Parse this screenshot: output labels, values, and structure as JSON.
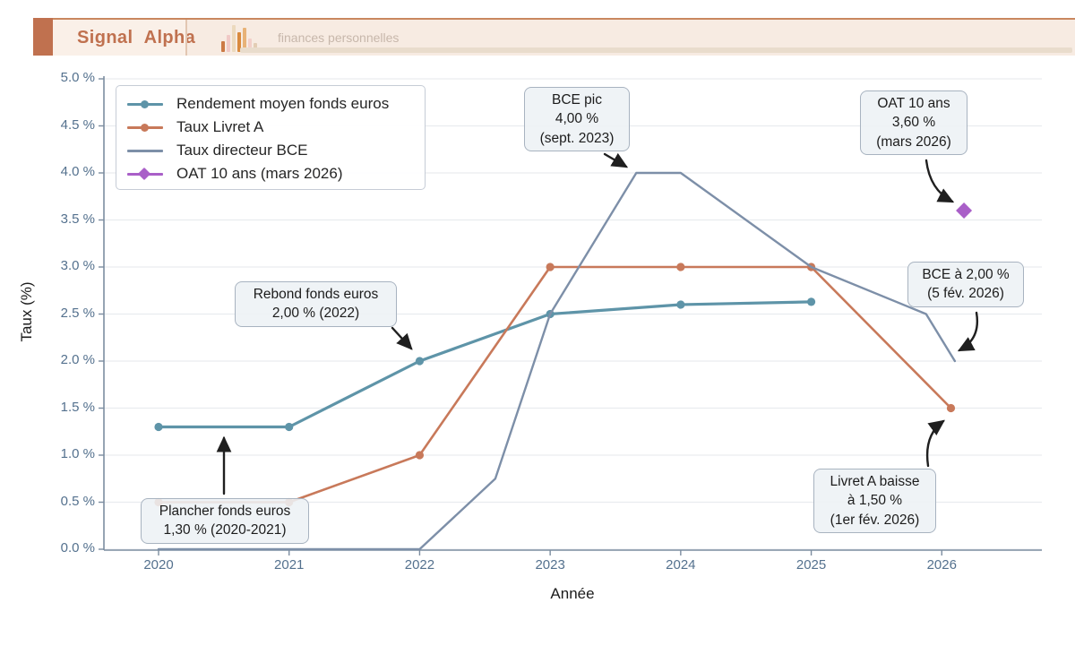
{
  "header": {
    "brand": "Signal Alpha",
    "tagline": "finances personnelles",
    "brand_color": "#c0714f",
    "icon": "bar-chart-logo"
  },
  "chart_data": {
    "type": "line",
    "title": "",
    "xlabel": "Année",
    "ylabel": "Taux (%)",
    "x_ticks": [
      "2020",
      "2021",
      "2022",
      "2023",
      "2024",
      "2025",
      "2026"
    ],
    "x_tick_years": [
      2020,
      2021,
      2022,
      2023,
      2024,
      2025,
      2026
    ],
    "y_ticks": [
      "0.0 %",
      "0.5 %",
      "1.0 %",
      "1.5 %",
      "2.0 %",
      "2.5 %",
      "3.0 %",
      "3.5 %",
      "4.0 %",
      "4.5 %",
      "5.0 %"
    ],
    "y_tick_values": [
      0,
      0.5,
      1,
      1.5,
      2,
      2.5,
      3,
      3.5,
      4,
      4.5,
      5
    ],
    "ylim": [
      0,
      5
    ],
    "xlim": [
      2019.57,
      2026.77
    ],
    "grid": true,
    "legend_position": "upper left",
    "series": [
      {
        "name": "Rendement moyen fonds euros",
        "color": "#5e94a8",
        "marker": "circle",
        "line_width": 3.2,
        "points": [
          [
            2020,
            1.3
          ],
          [
            2021,
            1.3
          ],
          [
            2022,
            2.0
          ],
          [
            2023,
            2.5
          ],
          [
            2024,
            2.6
          ],
          [
            2025,
            2.63
          ]
        ]
      },
      {
        "name": "Taux Livret A",
        "color": "#c8795a",
        "marker": "circle",
        "line_width": 2.6,
        "points": [
          [
            2020,
            0.5
          ],
          [
            2021,
            0.5
          ],
          [
            2022,
            1.0
          ],
          [
            2023,
            3.0
          ],
          [
            2024,
            3.0
          ],
          [
            2025,
            3.0
          ],
          [
            2026.07,
            1.5
          ]
        ]
      },
      {
        "name": "Taux directeur BCE",
        "color": "#7d8fa8",
        "marker": "none",
        "line_width": 2.4,
        "points": [
          [
            2020,
            0
          ],
          [
            2021,
            0
          ],
          [
            2022,
            0
          ],
          [
            2022.58,
            0.75
          ],
          [
            2023,
            2.5
          ],
          [
            2023.66,
            4.0
          ],
          [
            2024,
            4.0
          ],
          [
            2025,
            3.0
          ],
          [
            2025.88,
            2.5
          ],
          [
            2026.1,
            2.0
          ]
        ]
      },
      {
        "name": "OAT 10 ans (mars 2026)",
        "color": "#a95fc8",
        "marker": "diamond",
        "line_width": 2.4,
        "points": [
          [
            2026.17,
            3.6
          ]
        ]
      }
    ],
    "annotations": [
      {
        "id": "plancher-fonds-euros",
        "lines": [
          "Plancher fonds euros",
          "1,30 % (2020-2021)"
        ]
      },
      {
        "id": "rebond-fonds-euros",
        "lines": [
          "Rebond fonds euros",
          "2,00 % (2022)"
        ]
      },
      {
        "id": "bce-pic",
        "lines": [
          "BCE pic",
          "4,00 %",
          "(sept. 2023)"
        ]
      },
      {
        "id": "oat-10-ans",
        "lines": [
          "OAT 10 ans",
          "3,60 %",
          "(mars 2026)"
        ]
      },
      {
        "id": "bce-2-pourcent",
        "lines": [
          "BCE à 2,00 %",
          "(5 fév. 2026)"
        ]
      },
      {
        "id": "livret-a-baisse",
        "lines": [
          "Livret A baisse",
          "à 1,50 %",
          "(1er fév. 2026)"
        ]
      }
    ]
  }
}
